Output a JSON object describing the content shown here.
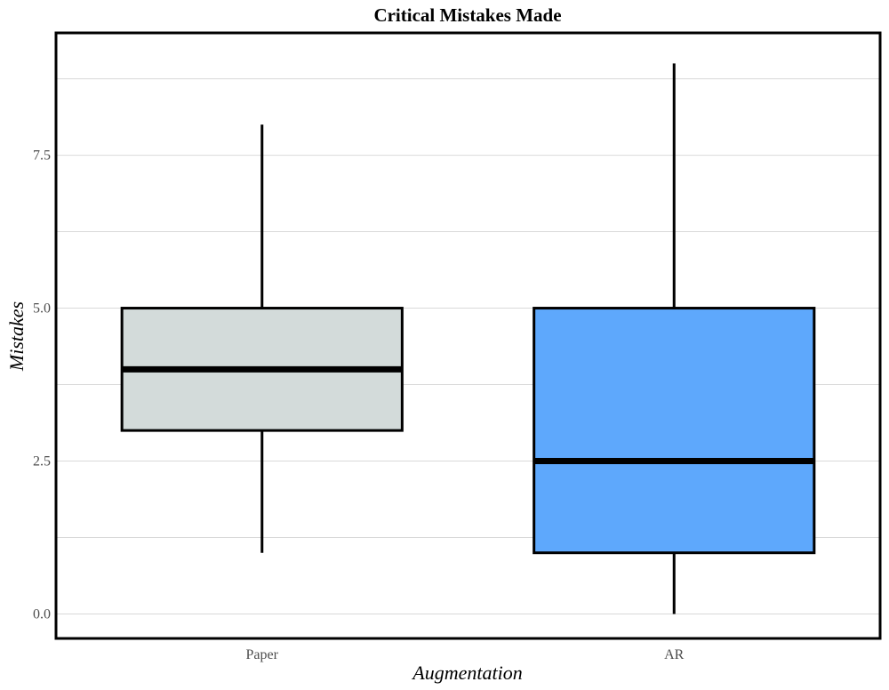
{
  "chart_data": {
    "type": "box",
    "title": "Critical Mistakes Made",
    "xlabel": "Augmentation",
    "ylabel": "Mistakes",
    "ylim": [
      -0.4,
      9.5
    ],
    "y_ticks": [
      0,
      2.5,
      5,
      7.5
    ],
    "y_tick_labels": [
      "0.0",
      "2.5",
      "5.0",
      "7.5"
    ],
    "y_minor_gridlines": [
      1.25,
      3.75,
      6.25,
      8.75
    ],
    "grid": true,
    "legend": "none",
    "categories": [
      "Paper",
      "AR"
    ],
    "boxes": [
      {
        "category": "Paper",
        "min": 1,
        "q1": 3,
        "median": 4,
        "q3": 5,
        "max": 8,
        "color": "#D3DBDA"
      },
      {
        "category": "AR",
        "min": 0,
        "q1": 1,
        "median": 2.5,
        "q3": 5,
        "max": 9,
        "color": "#5EA8FC"
      }
    ]
  }
}
